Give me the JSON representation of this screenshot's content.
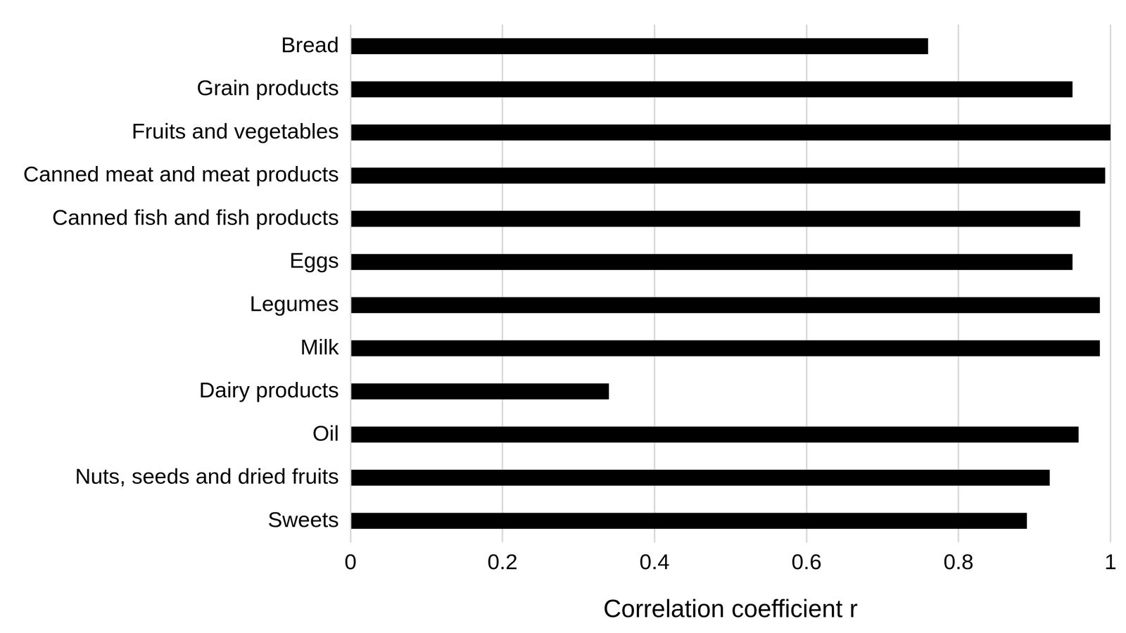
{
  "chart_data": {
    "type": "bar",
    "orientation": "horizontal",
    "categories": [
      "Bread",
      "Grain products",
      "Fruits and vegetables",
      "Canned meat and meat products",
      "Canned fish and fish products",
      "Eggs",
      "Legumes",
      "Milk",
      "Dairy products",
      "Oil",
      "Nuts, seeds and dried fruits",
      "Sweets"
    ],
    "values": [
      0.76,
      0.95,
      1.0,
      0.993,
      0.96,
      0.95,
      0.986,
      0.986,
      0.34,
      0.958,
      0.92,
      0.89
    ],
    "color": "#000000",
    "x_label": "Correlation coefficient r",
    "xlim": [
      0,
      1
    ],
    "xticks": [
      0,
      0.2,
      0.4,
      0.6,
      0.8,
      1
    ],
    "grid": true
  }
}
